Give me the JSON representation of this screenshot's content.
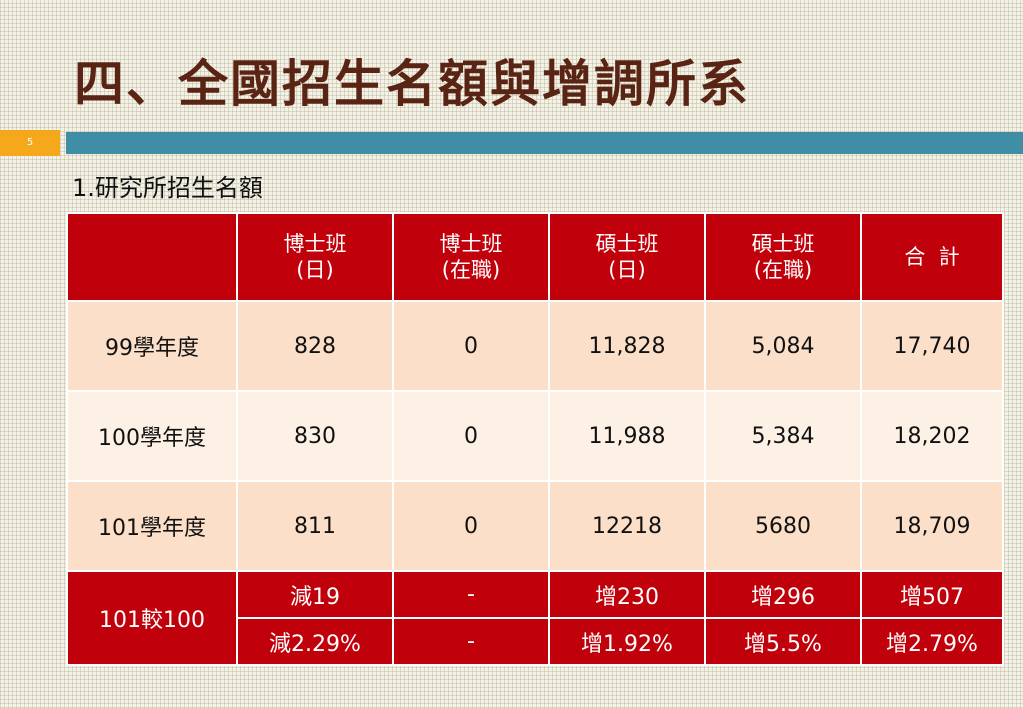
{
  "title": "四、全國招生名額與增調所系",
  "slide_number": "5",
  "subtitle": "1.研究所招生名額",
  "table": {
    "headers": [
      {
        "line1": "",
        "line2": ""
      },
      {
        "line1": "博士班",
        "line2": "(日)"
      },
      {
        "line1": "博士班",
        "line2": "(在職)"
      },
      {
        "line1": "碩士班",
        "line2": "(日)"
      },
      {
        "line1": "碩士班",
        "line2": "(在職)"
      },
      {
        "line1": "合  計",
        "line2": ""
      }
    ],
    "rows": [
      {
        "label": "99學年度",
        "values": [
          "828",
          "0",
          "11,828",
          "5,084",
          "17,740"
        ]
      },
      {
        "label": "100學年度",
        "values": [
          "830",
          "0",
          "11,988",
          "5,384",
          "18,202"
        ]
      },
      {
        "label": "101學年度",
        "values": [
          "811",
          "0",
          "12218",
          "5680",
          "18,709"
        ]
      }
    ],
    "comparison": {
      "label": "101較100",
      "diff": [
        "減19",
        "-",
        "增230",
        "增296",
        "增507"
      ],
      "percent": [
        "減2.29%",
        "-",
        "增1.92%",
        "增5.5%",
        "增2.79%"
      ]
    }
  },
  "colors": {
    "header_red": "#c0000a",
    "title_brown": "#5a2414",
    "band_blue": "#3f8ea6",
    "slide_number_orange": "#f5a81b",
    "row_peach": "#fbdfc8",
    "row_light": "#fdf1e6"
  }
}
